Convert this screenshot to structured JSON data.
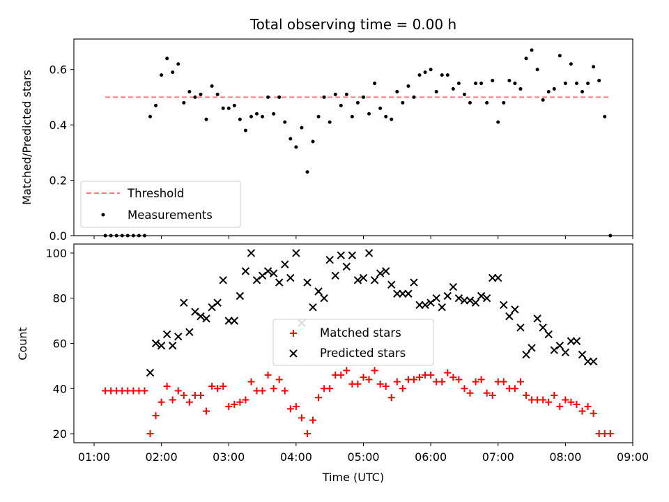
{
  "chart_data": [
    {
      "type": "scatter",
      "title": "Total observing time = 0.00 h",
      "ylabel": "Matched/Predicted stars",
      "xlabel": "",
      "ylim": [
        0,
        0.71
      ],
      "yticks": [
        "0.0",
        "0.2",
        "0.4",
        "0.6"
      ],
      "grid": false,
      "legend_position": "lower-left",
      "series": [
        {
          "name": "Threshold",
          "style": "dashed-line",
          "color": "#f08080",
          "x": [
            "01:10",
            "08:40"
          ],
          "values": [
            0.5,
            0.5
          ]
        },
        {
          "name": "Measurements",
          "style": "dot",
          "color": "#000000",
          "x": [
            "01:10",
            "01:15",
            "01:20",
            "01:25",
            "01:30",
            "01:35",
            "01:40",
            "01:45",
            "01:50",
            "01:55",
            "02:00",
            "02:05",
            "02:10",
            "02:15",
            "02:20",
            "02:25",
            "02:30",
            "02:35",
            "02:40",
            "02:45",
            "02:50",
            "02:55",
            "03:00",
            "03:05",
            "03:10",
            "03:15",
            "03:20",
            "03:25",
            "03:30",
            "03:35",
            "03:40",
            "03:45",
            "03:50",
            "03:55",
            "04:00",
            "04:05",
            "04:10",
            "04:15",
            "04:20",
            "04:25",
            "04:30",
            "04:35",
            "04:40",
            "04:45",
            "04:50",
            "04:55",
            "05:00",
            "05:05",
            "05:10",
            "05:15",
            "05:20",
            "05:25",
            "05:30",
            "05:35",
            "05:40",
            "05:45",
            "05:50",
            "05:55",
            "06:00",
            "06:05",
            "06:10",
            "06:15",
            "06:20",
            "06:25",
            "06:30",
            "06:35",
            "06:40",
            "06:45",
            "06:50",
            "06:55",
            "07:00",
            "07:05",
            "07:10",
            "07:15",
            "07:20",
            "07:25",
            "07:30",
            "07:35",
            "07:40",
            "07:45",
            "07:50",
            "07:55",
            "08:00",
            "08:05",
            "08:10",
            "08:15",
            "08:20",
            "08:25",
            "08:30",
            "08:35",
            "08:40"
          ],
          "values": [
            0,
            0,
            0,
            0,
            0,
            0,
            0,
            0,
            0.43,
            0.47,
            0.58,
            0.64,
            0.59,
            0.62,
            0.48,
            0.52,
            0.5,
            0.51,
            0.42,
            0.54,
            0.51,
            0.46,
            0.46,
            0.47,
            0.42,
            0.38,
            0.43,
            0.44,
            0.43,
            0.5,
            0.44,
            0.5,
            0.41,
            0.35,
            0.32,
            0.39,
            0.23,
            0.34,
            0.43,
            0.5,
            0.41,
            0.51,
            0.47,
            0.51,
            0.43,
            0.48,
            0.5,
            0.44,
            0.55,
            0.46,
            0.43,
            0.42,
            0.52,
            0.48,
            0.54,
            0.5,
            0.58,
            0.59,
            0.6,
            0.52,
            0.58,
            0.58,
            0.53,
            0.55,
            0.51,
            0.48,
            0.55,
            0.55,
            0.48,
            0.56,
            0.41,
            0.48,
            0.56,
            0.55,
            0.53,
            0.64,
            0.67,
            0.6,
            0.49,
            0.52,
            0.53,
            0.65,
            0.55,
            0.62,
            0.55,
            0.52,
            0.55,
            0.61,
            0.56,
            0.43,
            0
          ]
        }
      ]
    },
    {
      "type": "scatter",
      "title": "",
      "xlabel": "Time (UTC)",
      "ylabel": "Count",
      "ylim": [
        16,
        104
      ],
      "yticks": [
        "20",
        "40",
        "60",
        "80",
        "100"
      ],
      "xticks": [
        "01:00",
        "02:00",
        "03:00",
        "04:00",
        "05:00",
        "06:00",
        "07:00",
        "08:00",
        "09:00"
      ],
      "grid": false,
      "legend_position": "center",
      "series": [
        {
          "name": "Matched stars",
          "style": "plus",
          "color": "#ff0000",
          "x": [
            "01:10",
            "01:15",
            "01:20",
            "01:25",
            "01:30",
            "01:35",
            "01:40",
            "01:45",
            "01:50",
            "01:55",
            "02:00",
            "02:05",
            "02:10",
            "02:15",
            "02:20",
            "02:25",
            "02:30",
            "02:35",
            "02:40",
            "02:45",
            "02:50",
            "02:55",
            "03:00",
            "03:05",
            "03:10",
            "03:15",
            "03:20",
            "03:25",
            "03:30",
            "03:35",
            "03:40",
            "03:45",
            "03:50",
            "03:55",
            "04:00",
            "04:05",
            "04:10",
            "04:15",
            "04:20",
            "04:25",
            "04:30",
            "04:35",
            "04:40",
            "04:45",
            "04:50",
            "04:55",
            "05:00",
            "05:05",
            "05:10",
            "05:15",
            "05:20",
            "05:25",
            "05:30",
            "05:35",
            "05:40",
            "05:45",
            "05:50",
            "05:55",
            "06:00",
            "06:05",
            "06:10",
            "06:15",
            "06:20",
            "06:25",
            "06:30",
            "06:35",
            "06:40",
            "06:45",
            "06:50",
            "06:55",
            "07:00",
            "07:05",
            "07:10",
            "07:15",
            "07:20",
            "07:25",
            "07:30",
            "07:35",
            "07:40",
            "07:45",
            "07:50",
            "07:55",
            "08:00",
            "08:05",
            "08:10",
            "08:15",
            "08:20",
            "08:25",
            "08:30",
            "08:35",
            "08:40"
          ],
          "values": [
            39,
            39,
            39,
            39,
            39,
            39,
            39,
            39,
            20,
            28,
            34,
            41,
            35,
            39,
            37,
            34,
            37,
            37,
            30,
            41,
            40,
            41,
            32,
            33,
            34,
            35,
            43,
            39,
            39,
            46,
            40,
            44,
            39,
            31,
            32,
            27,
            20,
            26,
            36,
            40,
            40,
            46,
            46,
            48,
            42,
            42,
            45,
            44,
            48,
            42,
            41,
            36,
            43,
            40,
            44,
            44,
            45,
            46,
            46,
            43,
            43,
            47,
            45,
            44,
            40,
            38,
            43,
            44,
            38,
            37,
            43,
            43,
            40,
            40,
            43,
            37,
            35,
            35,
            35,
            34,
            37,
            32,
            35,
            34,
            33,
            30,
            32,
            29,
            20,
            20,
            20
          ]
        },
        {
          "name": "Predicted stars",
          "style": "x",
          "color": "#000000",
          "x": [
            "01:50",
            "01:55",
            "02:00",
            "02:05",
            "02:10",
            "02:15",
            "02:20",
            "02:25",
            "02:30",
            "02:35",
            "02:40",
            "02:45",
            "02:50",
            "02:55",
            "03:00",
            "03:05",
            "03:10",
            "03:15",
            "03:20",
            "03:25",
            "03:30",
            "03:35",
            "03:40",
            "03:45",
            "03:50",
            "03:55",
            "04:00",
            "04:05",
            "04:10",
            "04:15",
            "04:20",
            "04:25",
            "04:30",
            "04:35",
            "04:40",
            "04:45",
            "04:50",
            "04:55",
            "05:00",
            "05:05",
            "05:10",
            "05:15",
            "05:20",
            "05:25",
            "05:30",
            "05:35",
            "05:40",
            "05:45",
            "05:50",
            "05:55",
            "06:00",
            "06:05",
            "06:10",
            "06:15",
            "06:20",
            "06:25",
            "06:30",
            "06:35",
            "06:40",
            "06:45",
            "06:50",
            "06:55",
            "07:00",
            "07:05",
            "07:10",
            "07:15",
            "07:20",
            "07:25",
            "07:30",
            "07:35",
            "07:40",
            "07:45",
            "07:50",
            "07:55",
            "08:00",
            "08:05",
            "08:10",
            "08:15",
            "08:20",
            "08:25"
          ],
          "values": [
            47,
            60,
            59,
            64,
            59,
            63,
            78,
            65,
            74,
            72,
            71,
            76,
            78,
            88,
            70,
            70,
            81,
            92,
            100,
            88,
            90,
            92,
            91,
            87,
            95,
            89,
            100,
            69,
            87,
            76,
            83,
            80,
            97,
            90,
            99,
            94,
            99,
            88,
            89,
            100,
            88,
            91,
            92,
            86,
            82,
            82,
            82,
            87,
            77,
            77,
            78,
            80,
            76,
            81,
            85,
            80,
            79,
            79,
            78,
            81,
            80,
            89,
            89,
            77,
            72,
            75,
            67,
            55,
            58,
            71,
            67,
            64,
            57,
            59,
            56,
            61,
            61,
            55,
            52,
            52
          ]
        }
      ]
    }
  ]
}
